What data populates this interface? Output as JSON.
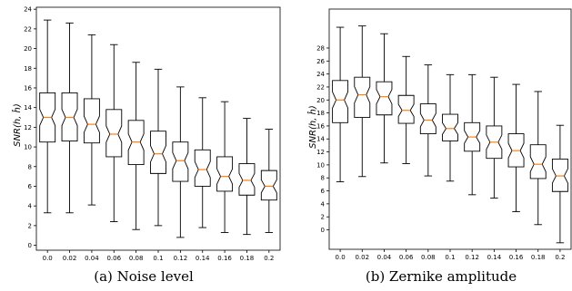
{
  "chart_data": [
    {
      "type": "box",
      "caption": "(a) Noise level",
      "ylabel": "SNR(h, ĥ)",
      "ylim": [
        -0.5,
        24.2
      ],
      "yticks": [
        0,
        2,
        4,
        6,
        8,
        10,
        12,
        14,
        16,
        18,
        20,
        22,
        24
      ],
      "grid": false,
      "categories": [
        "0.0",
        "0.02",
        "0.04",
        "0.06",
        "0.08",
        "0.1",
        "0.12",
        "0.14",
        "0.16",
        "0.18",
        "0.2"
      ],
      "boxes": [
        {
          "whislo": 3.3,
          "q1": 10.5,
          "med": 13.0,
          "q3": 15.5,
          "whishi": 22.9
        },
        {
          "whislo": 3.3,
          "q1": 10.6,
          "med": 13.0,
          "q3": 15.5,
          "whishi": 22.6
        },
        {
          "whislo": 4.1,
          "q1": 10.4,
          "med": 12.3,
          "q3": 14.9,
          "whishi": 21.4
        },
        {
          "whislo": 2.4,
          "q1": 9.0,
          "med": 11.3,
          "q3": 13.8,
          "whishi": 20.4
        },
        {
          "whislo": 1.6,
          "q1": 8.2,
          "med": 10.5,
          "q3": 12.7,
          "whishi": 18.6
        },
        {
          "whislo": 2.0,
          "q1": 7.3,
          "med": 9.3,
          "q3": 11.6,
          "whishi": 17.9
        },
        {
          "whislo": 0.8,
          "q1": 6.5,
          "med": 8.6,
          "q3": 10.5,
          "whishi": 16.1
        },
        {
          "whislo": 1.8,
          "q1": 6.0,
          "med": 7.7,
          "q3": 9.7,
          "whishi": 15.0
        },
        {
          "whislo": 1.3,
          "q1": 5.5,
          "med": 7.0,
          "q3": 9.0,
          "whishi": 14.6
        },
        {
          "whislo": 1.1,
          "q1": 5.1,
          "med": 6.6,
          "q3": 8.3,
          "whishi": 12.9
        },
        {
          "whislo": 1.3,
          "q1": 4.6,
          "med": 6.0,
          "q3": 7.6,
          "whishi": 11.8
        }
      ]
    },
    {
      "type": "box",
      "caption": "(b) Zernike amplitude",
      "ylabel": "SNR(h, ĥ)",
      "ylim": [
        -3.0,
        34.0
      ],
      "yticks": [
        0,
        2,
        4,
        6,
        8,
        10,
        12,
        14,
        16,
        18,
        20,
        22,
        24,
        26,
        28
      ],
      "grid": false,
      "categories": [
        "0.0",
        "0.02",
        "0.04",
        "0.06",
        "0.08",
        "0.1",
        "0.12",
        "0.14",
        "0.16",
        "0.18",
        "0.2"
      ],
      "boxes": [
        {
          "whislo": 7.4,
          "q1": 16.5,
          "med": 20.0,
          "q3": 23.0,
          "whishi": 31.2
        },
        {
          "whislo": 8.2,
          "q1": 17.3,
          "med": 20.8,
          "q3": 23.5,
          "whishi": 31.4
        },
        {
          "whislo": 10.3,
          "q1": 17.7,
          "med": 20.5,
          "q3": 22.8,
          "whishi": 30.2
        },
        {
          "whislo": 10.2,
          "q1": 16.4,
          "med": 18.4,
          "q3": 20.7,
          "whishi": 26.7
        },
        {
          "whislo": 8.3,
          "q1": 14.8,
          "med": 16.9,
          "q3": 19.4,
          "whishi": 25.4
        },
        {
          "whislo": 7.5,
          "q1": 13.7,
          "med": 15.6,
          "q3": 17.8,
          "whishi": 23.9
        },
        {
          "whislo": 5.4,
          "q1": 12.1,
          "med": 14.3,
          "q3": 16.5,
          "whishi": 23.9
        },
        {
          "whislo": 4.9,
          "q1": 11.0,
          "med": 13.5,
          "q3": 16.0,
          "whishi": 23.5
        },
        {
          "whislo": 2.8,
          "q1": 9.7,
          "med": 12.2,
          "q3": 14.8,
          "whishi": 22.4
        },
        {
          "whislo": 0.8,
          "q1": 7.9,
          "med": 10.1,
          "q3": 13.1,
          "whishi": 21.3
        },
        {
          "whislo": -2.0,
          "q1": 5.9,
          "med": 8.3,
          "q3": 10.9,
          "whishi": 16.1
        }
      ]
    }
  ],
  "colors": {
    "median": "#ff7f0e",
    "box": "#000000"
  }
}
